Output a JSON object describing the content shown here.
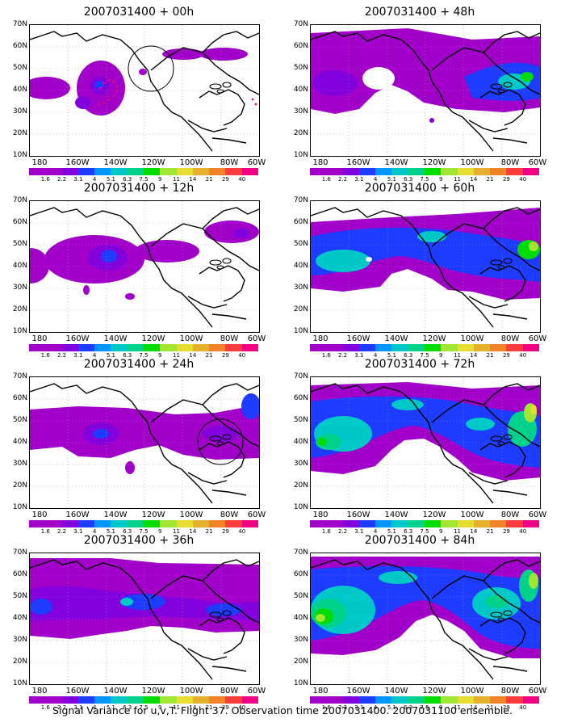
{
  "panels": [
    {
      "title": "2007031400 + 00h"
    },
    {
      "title": "2007031400 + 48h"
    },
    {
      "title": "2007031400 + 12h"
    },
    {
      "title": "2007031400 + 60h"
    },
    {
      "title": "2007031400 + 24h"
    },
    {
      "title": "2007031400 + 72h"
    },
    {
      "title": "2007031400 + 36h"
    },
    {
      "title": "2007031400 + 84h"
    }
  ],
  "lat_labels": [
    "70N",
    "60N",
    "50N",
    "40N",
    "30N",
    "20N",
    "10N"
  ],
  "lon_labels": [
    "180",
    "160W",
    "140W",
    "120W",
    "100W",
    "80W",
    "60W"
  ],
  "colorbar": {
    "labels": [
      "1.6",
      "2.2",
      "3.1",
      "4",
      "5.1",
      "6.3",
      "7.5",
      "9",
      "11",
      "14",
      "21",
      "29",
      "40"
    ],
    "colors": [
      "#a000c8",
      "#8200dc",
      "#1e3cff",
      "#0096ff",
      "#00c8c8",
      "#00d28c",
      "#00dc00",
      "#a0e632",
      "#e6dc32",
      "#e6af2d",
      "#f08228",
      "#fa3c3c",
      "#f00082"
    ]
  },
  "caption": "Signal Variance for u,v,T. Flight 37. Observation time 2007031400. 2007031100 ensemble."
}
